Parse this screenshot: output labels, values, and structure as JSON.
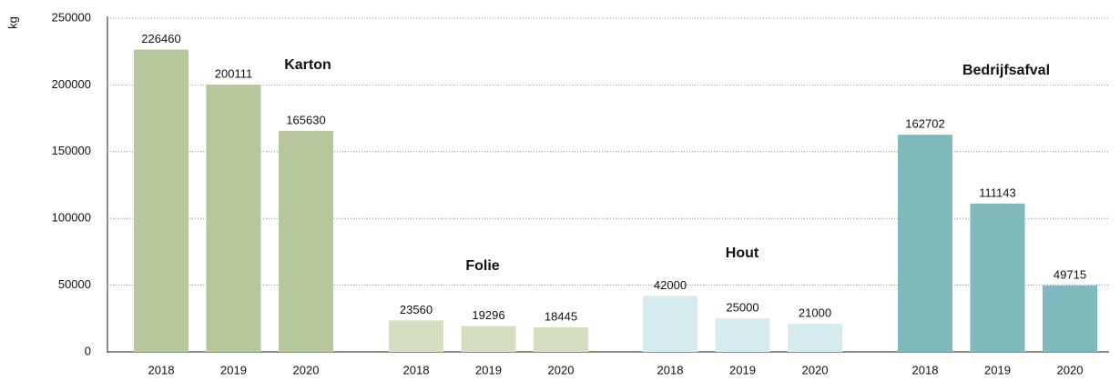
{
  "chart_data": {
    "type": "bar",
    "y_label": "kg",
    "ylim": [
      0,
      250000
    ],
    "yticks": [
      0,
      50000,
      100000,
      150000,
      200000,
      250000
    ],
    "grid": true,
    "groups": [
      {
        "name": "Karton",
        "color": "#b6c89b",
        "categories": [
          "2018",
          "2019",
          "2020"
        ],
        "values": [
          226460,
          200111,
          165630
        ]
      },
      {
        "name": "Folie",
        "color": "#d4dfc2",
        "categories": [
          "2018",
          "2019",
          "2020"
        ],
        "values": [
          23560,
          19296,
          18445
        ]
      },
      {
        "name": "Hout",
        "color": "#d5ebed",
        "categories": [
          "2018",
          "2019",
          "2020"
        ],
        "values": [
          42000,
          25000,
          21000
        ]
      },
      {
        "name": "Bedrijfsafval",
        "color": "#7fb9bb",
        "categories": [
          "2018",
          "2019",
          "2020"
        ],
        "values": [
          162702,
          111143,
          49715
        ]
      }
    ]
  }
}
